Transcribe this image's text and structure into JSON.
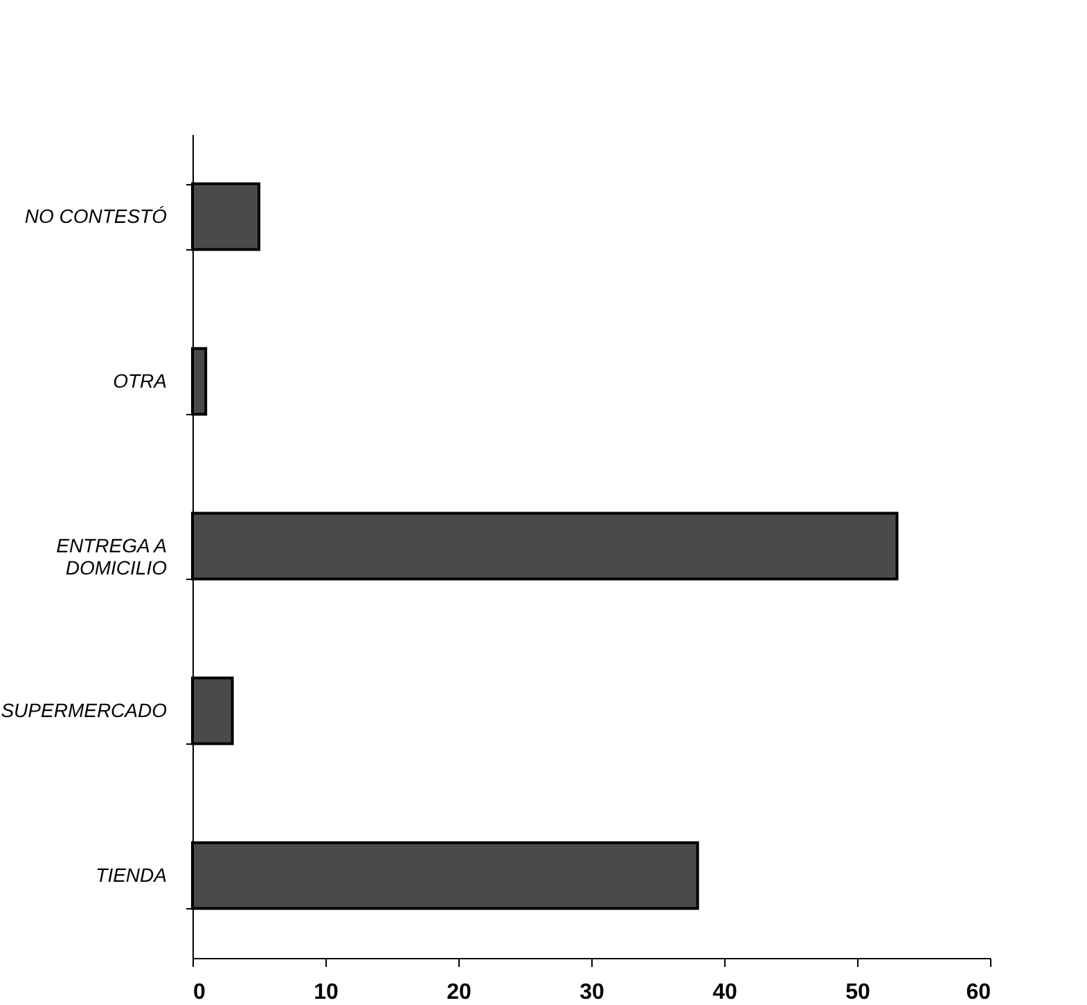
{
  "chart_data": {
    "type": "bar",
    "orientation": "horizontal",
    "categories": [
      "NO CONTESTÓ",
      "OTRA",
      "ENTREGA A DOMICILIO",
      "SUPERMERCADO",
      "TIENDA"
    ],
    "values": [
      5,
      1,
      53,
      3,
      38
    ],
    "color": "#4a4a4a",
    "xlim": [
      0,
      60
    ],
    "xticks": [
      0,
      10,
      20,
      30,
      40,
      50,
      60
    ],
    "grid": false
  }
}
